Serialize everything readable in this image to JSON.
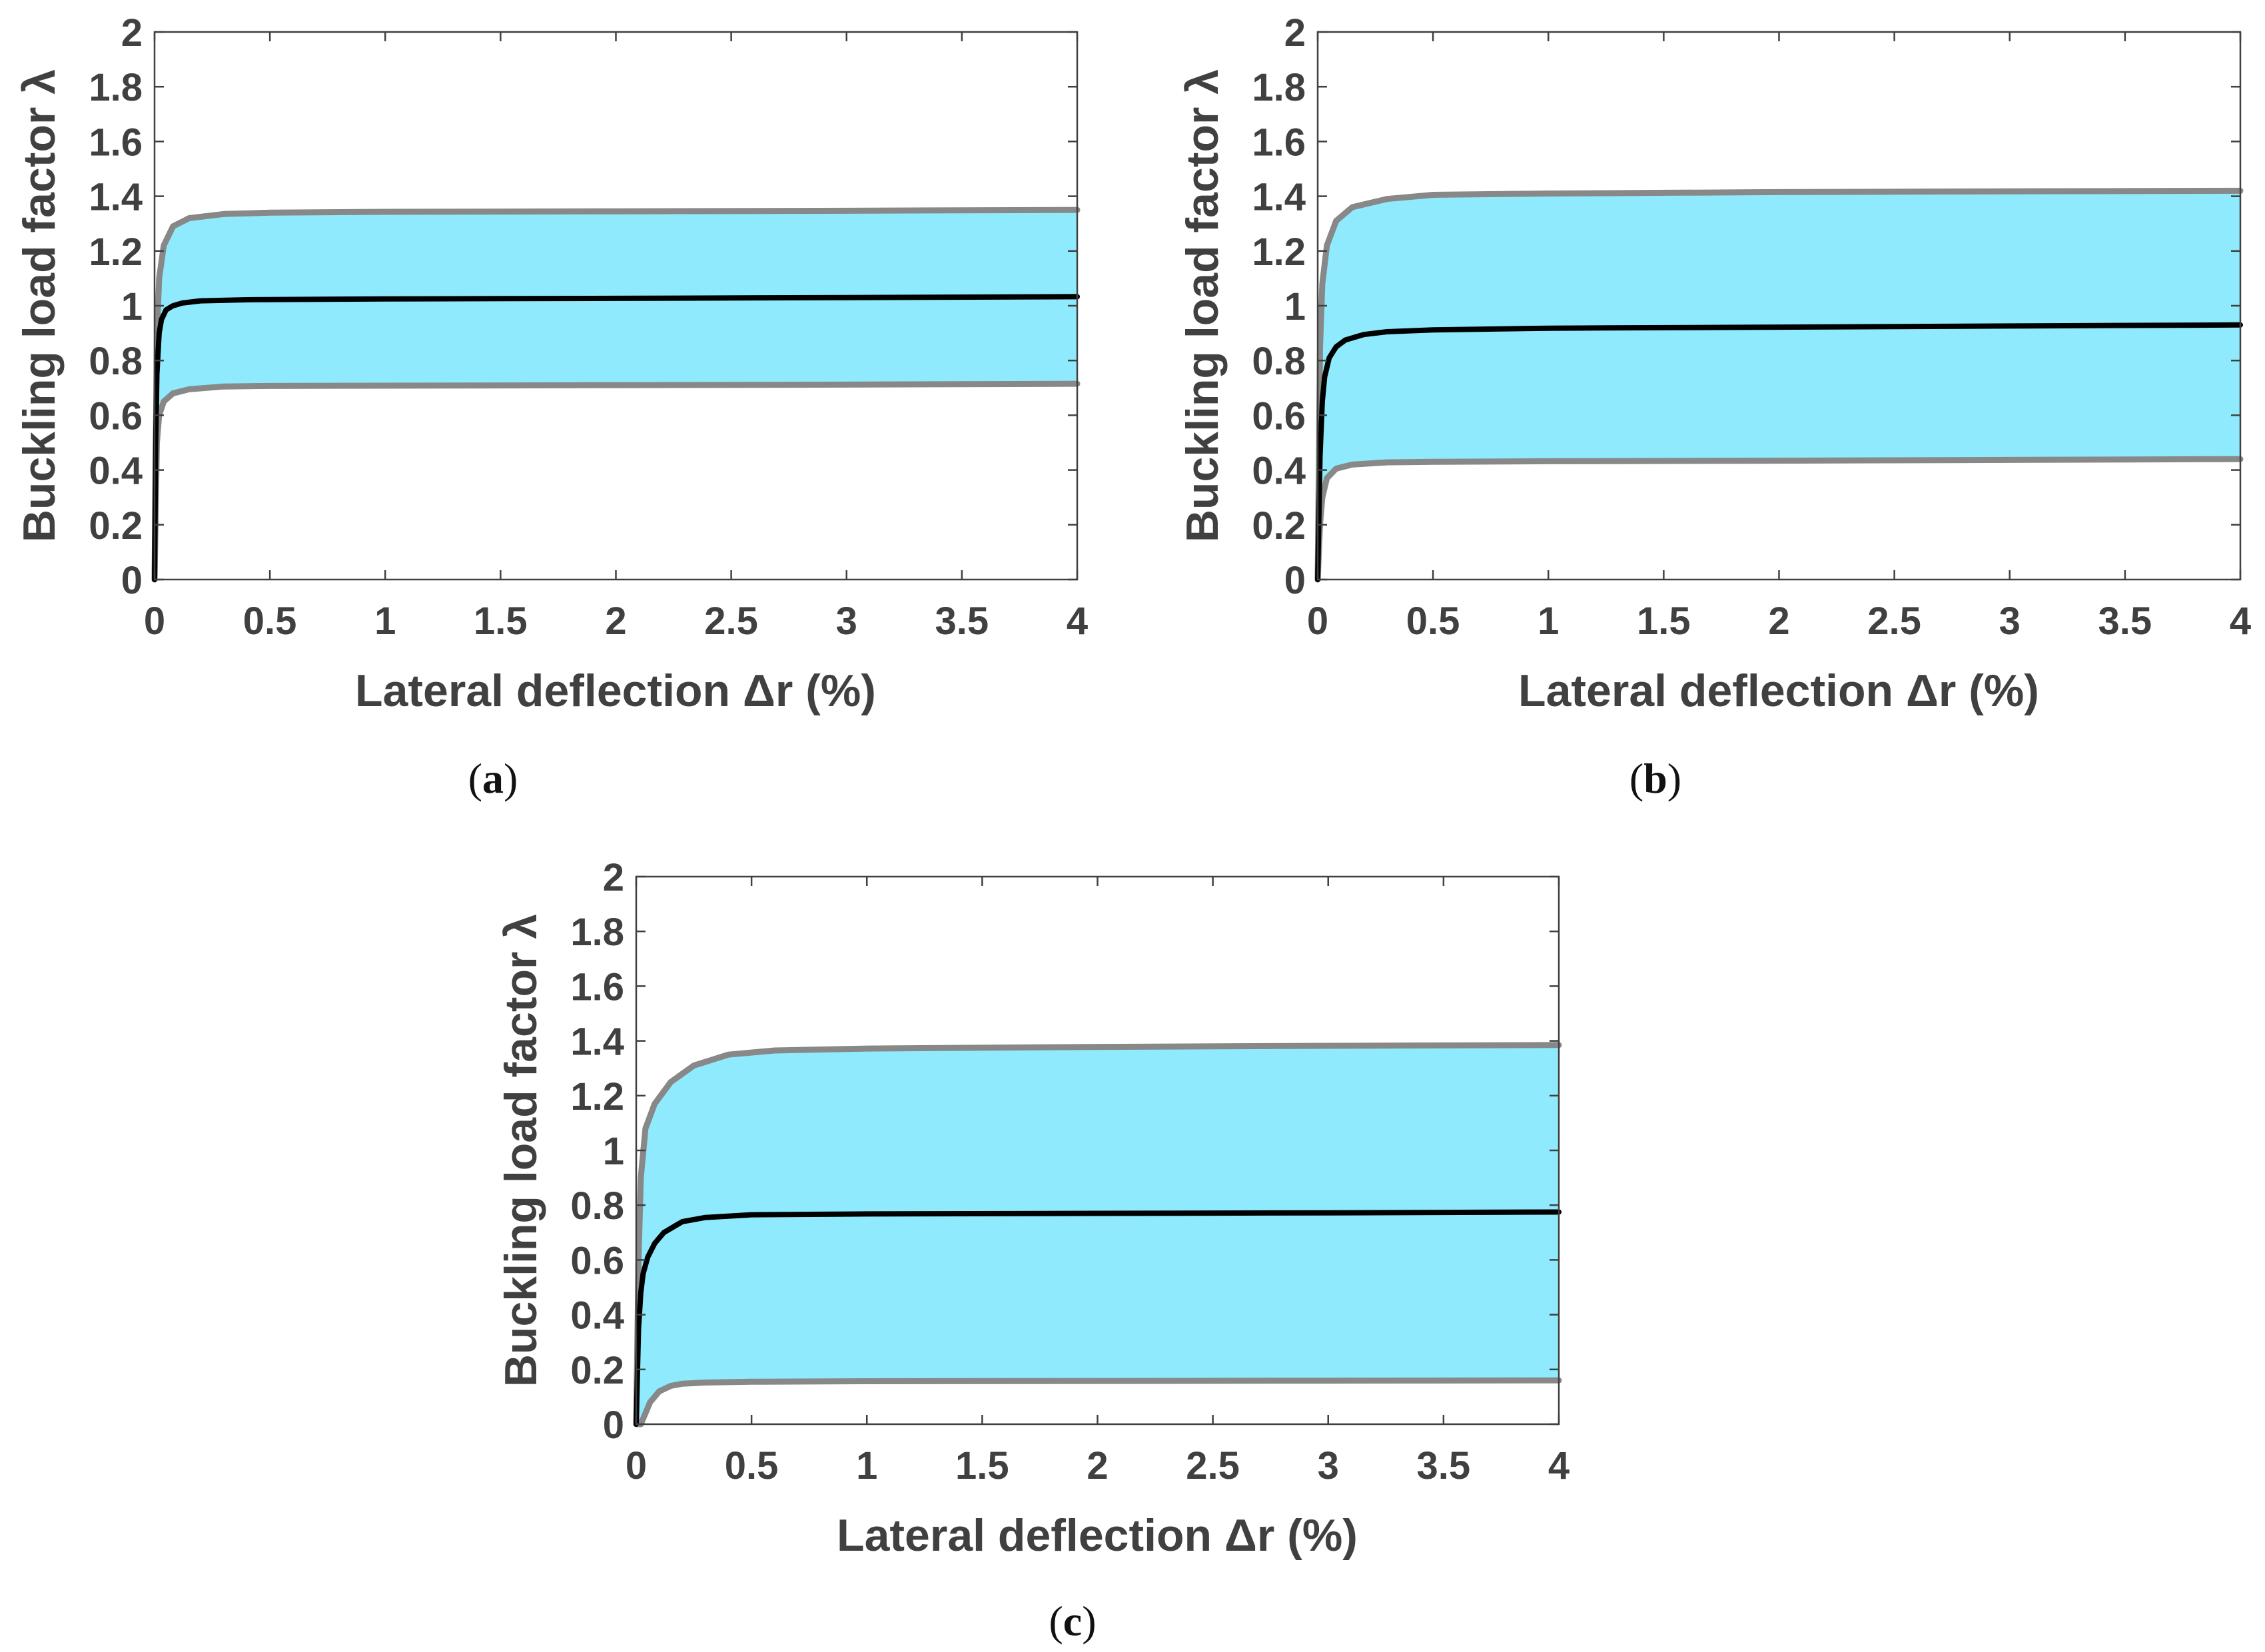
{
  "colors": {
    "band_fill": "#8eeafc",
    "envelope": "#888888",
    "mean": "#000000",
    "axis": "#404040",
    "text": "#404040"
  },
  "chart_data": [
    {
      "type": "area",
      "panel": "a",
      "caption": {
        "open": "(",
        "letter": "a",
        "close": ")"
      },
      "xlabel": "Lateral deflection Δr (%)",
      "ylabel": "Buckling load factor λ",
      "xlim": [
        0,
        4
      ],
      "ylim": [
        0,
        2
      ],
      "x_ticks": [
        "0",
        "0.5",
        "1",
        "1.5",
        "2",
        "2.5",
        "3",
        "3.5",
        "4"
      ],
      "y_ticks": [
        "0",
        "0.2",
        "0.4",
        "0.6",
        "0.8",
        "1",
        "1.2",
        "1.4",
        "1.6",
        "1.8",
        "2"
      ],
      "series": [
        {
          "name": "upper envelope",
          "x": [
            0,
            0.01,
            0.02,
            0.04,
            0.08,
            0.15,
            0.3,
            0.5,
            1,
            2,
            3,
            4
          ],
          "y": [
            0,
            0.9,
            1.1,
            1.22,
            1.29,
            1.32,
            1.335,
            1.34,
            1.343,
            1.345,
            1.347,
            1.35
          ]
        },
        {
          "name": "mean",
          "x": [
            0,
            0.005,
            0.01,
            0.02,
            0.03,
            0.05,
            0.08,
            0.12,
            0.2,
            0.4,
            1,
            2,
            3,
            4
          ],
          "y": [
            0,
            0.5,
            0.75,
            0.9,
            0.95,
            0.985,
            1.0,
            1.01,
            1.018,
            1.022,
            1.025,
            1.027,
            1.03,
            1.033
          ]
        },
        {
          "name": "lower envelope",
          "x": [
            0,
            0.01,
            0.02,
            0.04,
            0.08,
            0.15,
            0.3,
            0.5,
            1,
            2,
            3,
            4
          ],
          "y": [
            0,
            0.5,
            0.6,
            0.65,
            0.68,
            0.695,
            0.705,
            0.707,
            0.708,
            0.71,
            0.712,
            0.715
          ]
        }
      ]
    },
    {
      "type": "area",
      "panel": "b",
      "caption": {
        "open": "(",
        "letter": "b",
        "close": ")"
      },
      "xlabel": "Lateral deflection Δr (%)",
      "ylabel": "Buckling load factor λ",
      "xlim": [
        0,
        4
      ],
      "ylim": [
        0,
        2
      ],
      "x_ticks": [
        "0",
        "0.5",
        "1",
        "1.5",
        "2",
        "2.5",
        "3",
        "3.5",
        "4"
      ],
      "y_ticks": [
        "0",
        "0.2",
        "0.4",
        "0.6",
        "0.8",
        "1",
        "1.2",
        "1.4",
        "1.6",
        "1.8",
        "2"
      ],
      "series": [
        {
          "name": "upper envelope",
          "x": [
            0,
            0.01,
            0.02,
            0.04,
            0.08,
            0.15,
            0.3,
            0.5,
            1,
            2,
            3,
            4
          ],
          "y": [
            0,
            0.85,
            1.08,
            1.22,
            1.31,
            1.36,
            1.39,
            1.405,
            1.41,
            1.415,
            1.418,
            1.42
          ]
        },
        {
          "name": "mean",
          "x": [
            0,
            0.01,
            0.02,
            0.03,
            0.05,
            0.08,
            0.12,
            0.2,
            0.3,
            0.5,
            1,
            2,
            3,
            4
          ],
          "y": [
            0,
            0.45,
            0.65,
            0.74,
            0.81,
            0.85,
            0.875,
            0.895,
            0.905,
            0.912,
            0.918,
            0.922,
            0.926,
            0.93
          ]
        },
        {
          "name": "lower envelope",
          "x": [
            0,
            0.01,
            0.02,
            0.04,
            0.08,
            0.15,
            0.3,
            0.5,
            1,
            2,
            3,
            4
          ],
          "y": [
            0,
            0.2,
            0.3,
            0.37,
            0.405,
            0.42,
            0.428,
            0.43,
            0.432,
            0.434,
            0.437,
            0.44
          ]
        }
      ]
    },
    {
      "type": "area",
      "panel": "c",
      "caption": {
        "open": "(",
        "letter": "c",
        "close": ")"
      },
      "xlabel": "Lateral deflection Δr (%)",
      "ylabel": "Buckling load factor λ",
      "xlim": [
        0,
        4
      ],
      "ylim": [
        0,
        2
      ],
      "x_ticks": [
        "0",
        "0.5",
        "1",
        "1.5",
        "2",
        "2.5",
        "3",
        "3.5",
        "4"
      ],
      "y_ticks": [
        "0",
        "0.2",
        "0.4",
        "0.6",
        "0.8",
        "1",
        "1.2",
        "1.4",
        "1.6",
        "1.8",
        "2"
      ],
      "series": [
        {
          "name": "upper envelope",
          "x": [
            0,
            0.01,
            0.02,
            0.04,
            0.08,
            0.15,
            0.25,
            0.4,
            0.6,
            1,
            2,
            3,
            4
          ],
          "y": [
            0,
            0.6,
            0.9,
            1.08,
            1.17,
            1.25,
            1.31,
            1.35,
            1.365,
            1.372,
            1.378,
            1.382,
            1.385
          ]
        },
        {
          "name": "mean",
          "x": [
            0,
            0.01,
            0.02,
            0.03,
            0.05,
            0.08,
            0.12,
            0.2,
            0.3,
            0.5,
            1,
            2,
            3,
            4
          ],
          "y": [
            0,
            0.35,
            0.48,
            0.55,
            0.61,
            0.66,
            0.7,
            0.74,
            0.755,
            0.765,
            0.768,
            0.77,
            0.772,
            0.775
          ]
        },
        {
          "name": "lower envelope",
          "x": [
            0,
            0.02,
            0.04,
            0.06,
            0.1,
            0.15,
            0.2,
            0.3,
            0.5,
            1,
            2,
            3,
            4
          ],
          "y": [
            0,
            0.0,
            0.04,
            0.08,
            0.12,
            0.14,
            0.148,
            0.152,
            0.155,
            0.157,
            0.158,
            0.159,
            0.16
          ]
        }
      ]
    }
  ]
}
